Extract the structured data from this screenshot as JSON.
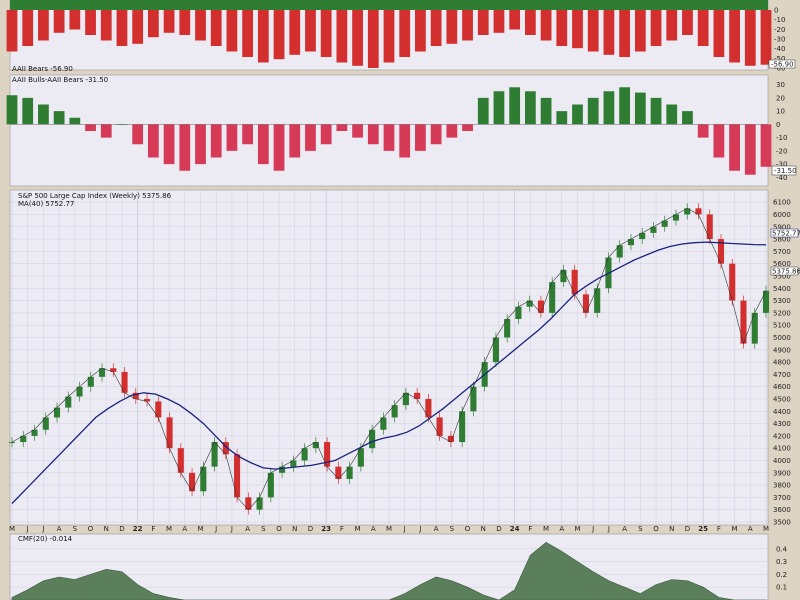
{
  "colors": {
    "panel_bg": "#ecebf4",
    "grid": "#c8c8d8",
    "up": "#2e7d32",
    "down": "#d32f2f",
    "spread_neg": "#d63a57",
    "ma": "#1a237e",
    "cmf": "#5b7f5b",
    "frame": "#ddd4c4"
  },
  "panels": {
    "bears": {
      "label": "AAII Bears -56.90",
      "badge": "-56.90",
      "yticks": [
        "0",
        "-10",
        "-20",
        "-30",
        "-40",
        "-50",
        "-60"
      ]
    },
    "spread": {
      "label": "AAII Bulls-AAII Bears -31.50",
      "badge": "-31.50",
      "yticks": [
        "30",
        "20",
        "10",
        "0",
        "-10",
        "-20",
        "-30",
        "-40"
      ]
    },
    "price": {
      "label": "S&P 500 Large Cap Index (Weekly) 5375.86",
      "ma_label": "MA(40) 5752.77",
      "ma_badge": "5752.77",
      "price_badge": "5375.86",
      "yticks": [
        "6100",
        "6000",
        "5900",
        "5800",
        "5700",
        "5600",
        "5500",
        "5400",
        "5300",
        "5200",
        "5100",
        "5000",
        "4900",
        "4800",
        "4700",
        "4600",
        "4500",
        "4400",
        "4300",
        "4200",
        "4100",
        "4000",
        "3900",
        "3800",
        "3700",
        "3600",
        "3500"
      ]
    },
    "cmf": {
      "label": "CMF(20) -0.014",
      "yticks": [
        "0.4",
        "0.3",
        "0.2",
        "0.1"
      ]
    }
  },
  "xaxis": [
    "M",
    "J",
    "J",
    "A",
    "S",
    "O",
    "N",
    "D",
    "22",
    "F",
    "M",
    "A",
    "M",
    "J",
    "J",
    "A",
    "S",
    "O",
    "N",
    "D",
    "23",
    "F",
    "M",
    "A",
    "M",
    "J",
    "J",
    "A",
    "S",
    "O",
    "N",
    "D",
    "24",
    "F",
    "M",
    "A",
    "M",
    "J",
    "J",
    "A",
    "S",
    "O",
    "N",
    "D",
    "25",
    "F",
    "M",
    "A",
    "M"
  ],
  "chart_data": [
    {
      "type": "bar",
      "title": "AAII Bears -56.90",
      "ylim": [
        -60,
        0
      ],
      "series": [
        {
          "name": "AAII Bears",
          "values": [
            -45,
            -40,
            -35,
            -28,
            -25,
            -30,
            -35,
            -40,
            -38,
            -32,
            -28,
            -30,
            -35,
            -40,
            -45,
            -50,
            -55,
            -52,
            -48,
            -45,
            -50,
            -55,
            -58,
            -60,
            -55,
            -50,
            -45,
            -40,
            -38,
            -35,
            -30,
            -28,
            -25,
            -30,
            -35,
            -40,
            -42,
            -45,
            -48,
            -50,
            -45,
            -40,
            -35,
            -30,
            -40,
            -50,
            -55,
            -58,
            -57
          ]
        }
      ]
    },
    {
      "type": "bar",
      "title": "AAII Bulls-AAII Bears -31.50",
      "ylim": [
        -45,
        35
      ],
      "series": [
        {
          "name": "AAII Bulls-AAII Bears",
          "values": [
            22,
            20,
            15,
            10,
            5,
            -5,
            -10,
            0,
            -15,
            -25,
            -30,
            -35,
            -30,
            -25,
            -20,
            -15,
            -30,
            -35,
            -25,
            -20,
            -15,
            -5,
            -10,
            -15,
            -20,
            -25,
            -20,
            -15,
            -10,
            -5,
            20,
            25,
            28,
            25,
            20,
            10,
            15,
            20,
            25,
            28,
            24,
            20,
            15,
            10,
            -10,
            -25,
            -35,
            -38,
            -32
          ]
        }
      ]
    },
    {
      "type": "line",
      "title": "S&P 500 Large Cap Index (Weekly) 5375.86",
      "ylim": [
        3500,
        6150
      ],
      "series": [
        {
          "name": "S&P 500 Large Cap Index (Weekly)",
          "values": [
            4150,
            4200,
            4250,
            4350,
            4430,
            4520,
            4600,
            4680,
            4750,
            4720,
            4550,
            4500,
            4480,
            4350,
            4100,
            3900,
            3750,
            3950,
            4150,
            4050,
            3700,
            3600,
            3700,
            3900,
            3950,
            4000,
            4100,
            4150,
            3950,
            3850,
            3950,
            4100,
            4250,
            4350,
            4450,
            4550,
            4500,
            4350,
            4200,
            4150,
            4400,
            4600,
            4800,
            5000,
            5150,
            5250,
            5300,
            5200,
            5450,
            5550,
            5350,
            5200,
            5400,
            5650,
            5750,
            5800,
            5850,
            5900,
            5950,
            6000,
            6050,
            6000,
            5800,
            5600,
            5300,
            4950,
            5200,
            5380
          ]
        },
        {
          "name": "MA(40)",
          "values": [
            3650,
            3750,
            3850,
            3950,
            4050,
            4150,
            4250,
            4350,
            4420,
            4480,
            4530,
            4550,
            4540,
            4500,
            4450,
            4380,
            4300,
            4200,
            4100,
            4030,
            3980,
            3940,
            3930,
            3940,
            3950,
            3960,
            3980,
            4000,
            4050,
            4100,
            4150,
            4180,
            4200,
            4230,
            4280,
            4350,
            4420,
            4500,
            4580,
            4660,
            4740,
            4820,
            4900,
            4980,
            5060,
            5150,
            5250,
            5350,
            5420,
            5480,
            5530,
            5580,
            5630,
            5670,
            5710,
            5740,
            5760,
            5770,
            5775,
            5770,
            5765,
            5760,
            5755,
            5753
          ]
        }
      ]
    },
    {
      "type": "area",
      "title": "CMF(20) -0.014",
      "ylim": [
        0.0,
        0.5
      ],
      "series": [
        {
          "name": "CMF(20)",
          "values": [
            0.02,
            0.08,
            0.15,
            0.18,
            0.16,
            0.2,
            0.24,
            0.22,
            0.12,
            0.05,
            0.02,
            0.0,
            0.0,
            0.0,
            0.0,
            0.0,
            0.0,
            0.0,
            0.0,
            0.0,
            0.0,
            0.0,
            0.0,
            0.0,
            0.0,
            0.05,
            0.12,
            0.18,
            0.15,
            0.1,
            0.04,
            0.0,
            0.08,
            0.35,
            0.45,
            0.38,
            0.3,
            0.22,
            0.15,
            0.1,
            0.05,
            0.12,
            0.16,
            0.15,
            0.1,
            0.02,
            0.0,
            0.0,
            0.0
          ]
        }
      ]
    }
  ]
}
